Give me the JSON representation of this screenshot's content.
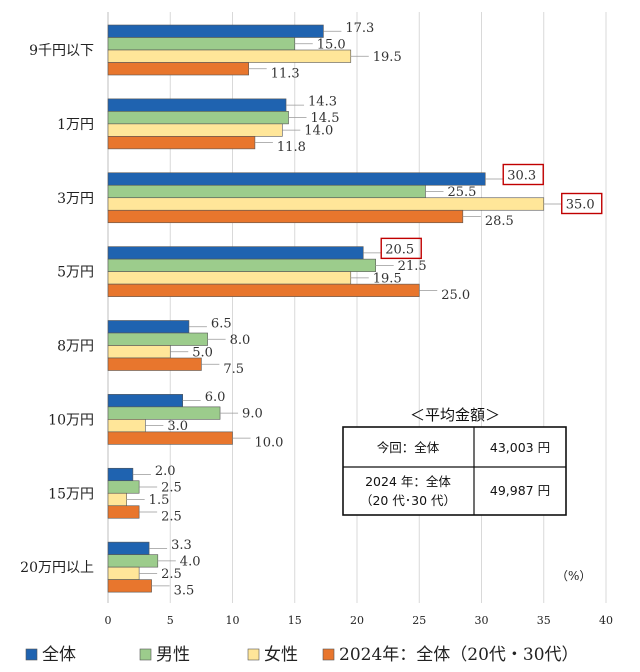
{
  "chart_data": {
    "type": "bar",
    "orientation": "horizontal",
    "categories": [
      "9千円以下",
      "1万円",
      "3万円",
      "5万円",
      "8万円",
      "10万円",
      "15万円",
      "20万円以上"
    ],
    "series": [
      {
        "name": "全体",
        "color": "#1f63b0",
        "values": [
          17.3,
          14.3,
          30.3,
          20.5,
          6.5,
          6.0,
          2.0,
          3.3
        ]
      },
      {
        "name": "男性",
        "color": "#9ccc8c",
        "values": [
          15.0,
          14.5,
          25.5,
          21.5,
          8.0,
          9.0,
          2.5,
          4.0
        ]
      },
      {
        "name": "女性",
        "color": "#ffe699",
        "values": [
          19.5,
          14.0,
          35.0,
          19.5,
          5.0,
          3.0,
          1.5,
          2.5
        ]
      },
      {
        "name": "2024年：全体（20代・30代）",
        "color": "#e8762d",
        "values": [
          11.3,
          11.8,
          28.5,
          25.0,
          7.5,
          10.0,
          2.5,
          3.5
        ]
      }
    ],
    "xlim": [
      0,
      40
    ],
    "xticks": [
      0,
      5,
      10,
      15,
      20,
      25,
      30,
      35,
      40
    ],
    "unit_label": "（%）",
    "highlighted": [
      {
        "series": 0,
        "category": 2
      },
      {
        "series": 2,
        "category": 2
      },
      {
        "series": 0,
        "category": 3
      }
    ],
    "legend_position": "bottom",
    "grid": true
  },
  "average_table": {
    "title": "＜平均金額＞",
    "rows": [
      {
        "label_lines": [
          "今回：全体"
        ],
        "value": "43,003 円"
      },
      {
        "label_lines": [
          "2024 年：全体",
          "（20 代･30 代）"
        ],
        "value": "49,987 円"
      }
    ]
  }
}
